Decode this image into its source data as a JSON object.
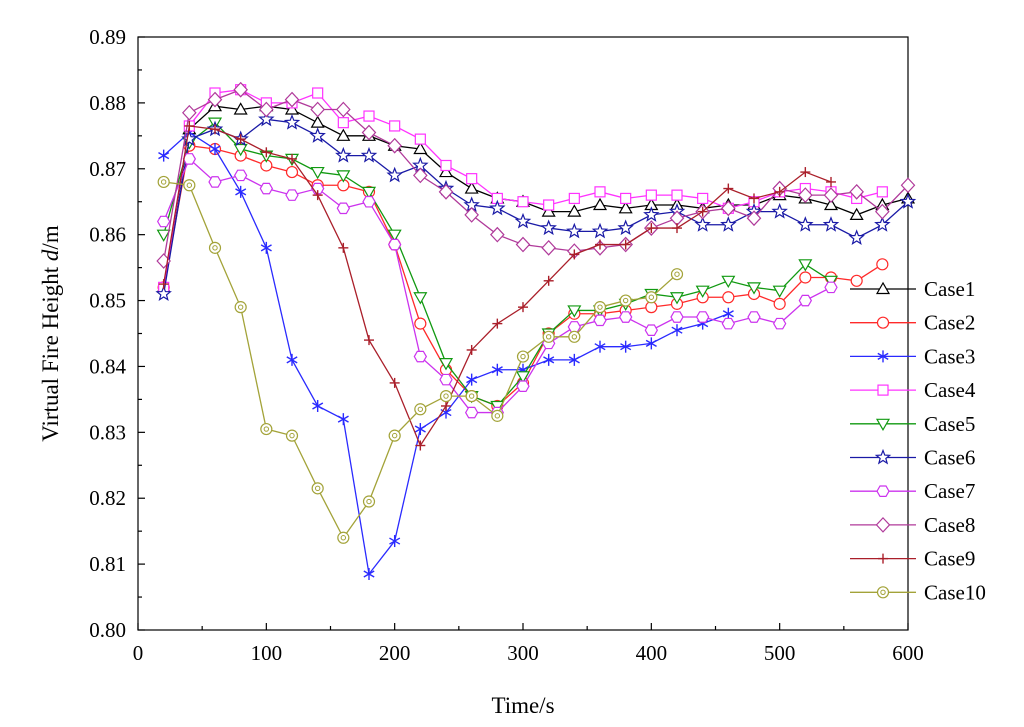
{
  "chart_data": {
    "type": "line",
    "title": "",
    "xlabel": "Time/s",
    "ylabel_prefix": "Virtual Fire Height ",
    "ylabel_var": "d",
    "ylabel_suffix": "/m",
    "xlim": [
      0,
      600
    ],
    "ylim": [
      0.8,
      0.89
    ],
    "xticks": [
      0,
      100,
      200,
      300,
      400,
      500,
      600
    ],
    "yticks": [
      0.8,
      0.81,
      0.82,
      0.83,
      0.84,
      0.85,
      0.86,
      0.87,
      0.88,
      0.89
    ],
    "xtick_labels": [
      "0",
      "100",
      "200",
      "300",
      "400",
      "500",
      "600"
    ],
    "ytick_labels": [
      "0.80",
      "0.81",
      "0.82",
      "0.83",
      "0.84",
      "0.85",
      "0.86",
      "0.87",
      "0.88",
      "0.89"
    ],
    "legend_position": "right",
    "grid": false,
    "series": [
      {
        "name": "Case1",
        "color": "#000000",
        "marker": "triangle-up",
        "x": [
          20,
          40,
          60,
          80,
          100,
          120,
          140,
          160,
          180,
          200,
          220,
          240,
          260,
          280,
          300,
          320,
          340,
          360,
          380,
          400,
          420,
          440,
          460,
          480,
          500,
          520,
          540,
          560,
          580,
          600
        ],
        "y": [
          0.852,
          0.876,
          0.8795,
          0.879,
          0.8795,
          0.879,
          0.877,
          0.875,
          0.875,
          0.8735,
          0.873,
          0.8695,
          0.867,
          0.8655,
          0.865,
          0.8635,
          0.8635,
          0.8645,
          0.864,
          0.8645,
          0.8645,
          0.864,
          0.8645,
          0.8645,
          0.866,
          0.8655,
          0.8645,
          0.863,
          0.8645,
          0.8655
        ]
      },
      {
        "name": "Case2",
        "color": "#ff2a2a",
        "marker": "circle",
        "x": [
          20,
          40,
          60,
          80,
          100,
          120,
          140,
          160,
          180,
          200,
          220,
          240,
          260,
          280,
          300,
          320,
          340,
          360,
          380,
          400,
          420,
          440,
          460,
          480,
          500,
          520,
          540,
          560,
          580
        ],
        "y": [
          0.852,
          0.8735,
          0.873,
          0.872,
          0.8705,
          0.8695,
          0.8675,
          0.8675,
          0.8665,
          0.8585,
          0.8465,
          0.8395,
          0.8355,
          0.834,
          0.8375,
          0.845,
          0.848,
          0.848,
          0.8485,
          0.849,
          0.8495,
          0.8505,
          0.8505,
          0.851,
          0.8495,
          0.8535,
          0.8535,
          0.853,
          0.8555
        ]
      },
      {
        "name": "Case3",
        "color": "#2a2aff",
        "marker": "asterisk",
        "x": [
          20,
          40,
          60,
          80,
          100,
          120,
          140,
          160,
          180,
          200,
          220,
          240,
          260,
          280,
          300,
          320,
          340,
          360,
          380,
          400,
          420,
          440,
          460
        ],
        "y": [
          0.872,
          0.8755,
          0.873,
          0.8665,
          0.858,
          0.841,
          0.834,
          0.832,
          0.8085,
          0.8135,
          0.8305,
          0.833,
          0.838,
          0.8395,
          0.8395,
          0.841,
          0.841,
          0.843,
          0.843,
          0.8435,
          0.8455,
          0.8465,
          0.848
        ]
      },
      {
        "name": "Case4",
        "color": "#ff33ff",
        "marker": "square",
        "x": [
          20,
          40,
          60,
          80,
          100,
          120,
          140,
          160,
          180,
          200,
          220,
          240,
          260,
          280,
          300,
          320,
          340,
          360,
          380,
          400,
          420,
          440,
          460,
          480,
          500,
          520,
          540,
          560,
          580
        ],
        "y": [
          0.852,
          0.8765,
          0.8815,
          0.882,
          0.88,
          0.88,
          0.8815,
          0.877,
          0.878,
          0.8765,
          0.8745,
          0.8705,
          0.8685,
          0.8655,
          0.865,
          0.8645,
          0.8655,
          0.8665,
          0.8655,
          0.866,
          0.866,
          0.8655,
          0.864,
          0.865,
          0.8665,
          0.867,
          0.8665,
          0.8655,
          0.8665
        ]
      },
      {
        "name": "Case5",
        "color": "#119911",
        "marker": "triangle-down",
        "x": [
          20,
          40,
          60,
          80,
          100,
          120,
          140,
          160,
          180,
          200,
          220,
          240,
          260,
          280,
          300,
          320,
          340,
          360,
          380,
          400,
          420,
          440,
          460,
          480,
          500,
          520,
          540
        ],
        "y": [
          0.86,
          0.874,
          0.877,
          0.873,
          0.872,
          0.8715,
          0.8695,
          0.869,
          0.8665,
          0.86,
          0.8505,
          0.8405,
          0.8355,
          0.834,
          0.8385,
          0.845,
          0.8485,
          0.8485,
          0.8495,
          0.851,
          0.8505,
          0.8515,
          0.853,
          0.852,
          0.8515,
          0.8555,
          0.853
        ]
      },
      {
        "name": "Case6",
        "color": "#1a1aa6",
        "marker": "star",
        "x": [
          20,
          40,
          60,
          80,
          100,
          120,
          140,
          160,
          180,
          200,
          220,
          240,
          260,
          280,
          300,
          320,
          340,
          360,
          380,
          400,
          420,
          440,
          460,
          480,
          500,
          520,
          540,
          560,
          580,
          600
        ],
        "y": [
          0.851,
          0.8745,
          0.876,
          0.8745,
          0.8775,
          0.877,
          0.875,
          0.872,
          0.872,
          0.869,
          0.8705,
          0.867,
          0.8645,
          0.864,
          0.862,
          0.861,
          0.8605,
          0.8605,
          0.861,
          0.863,
          0.8635,
          0.8615,
          0.8615,
          0.8635,
          0.8635,
          0.8615,
          0.8615,
          0.8595,
          0.8615,
          0.865
        ]
      },
      {
        "name": "Case7",
        "color": "#cc33ee",
        "marker": "hexagon",
        "x": [
          20,
          40,
          60,
          80,
          100,
          120,
          140,
          160,
          180,
          200,
          220,
          240,
          260,
          280,
          300,
          320,
          340,
          360,
          380,
          400,
          420,
          440,
          460,
          480,
          500,
          520,
          540
        ],
        "y": [
          0.862,
          0.8715,
          0.868,
          0.869,
          0.867,
          0.866,
          0.867,
          0.864,
          0.865,
          0.8585,
          0.8415,
          0.838,
          0.833,
          0.833,
          0.837,
          0.8435,
          0.846,
          0.847,
          0.8475,
          0.8455,
          0.8475,
          0.8475,
          0.8465,
          0.8475,
          0.8465,
          0.85,
          0.852
        ]
      },
      {
        "name": "Case8",
        "color": "#b03a9a",
        "marker": "diamond",
        "x": [
          20,
          40,
          60,
          80,
          100,
          120,
          140,
          160,
          180,
          200,
          220,
          240,
          260,
          280,
          300,
          320,
          340,
          360,
          380,
          400,
          420,
          440,
          460,
          480,
          500,
          520,
          540,
          560,
          580,
          600
        ],
        "y": [
          0.856,
          0.8785,
          0.8805,
          0.882,
          0.879,
          0.8805,
          0.879,
          0.879,
          0.8755,
          0.8735,
          0.869,
          0.8665,
          0.863,
          0.86,
          0.8585,
          0.858,
          0.8575,
          0.858,
          0.8585,
          0.861,
          0.8625,
          0.8635,
          0.864,
          0.8625,
          0.867,
          0.866,
          0.866,
          0.8665,
          0.8635,
          0.8675
        ]
      },
      {
        "name": "Case9",
        "color": "#aa1f2a",
        "marker": "plus",
        "x": [
          20,
          40,
          60,
          80,
          100,
          120,
          140,
          160,
          180,
          200,
          220,
          240,
          260,
          280,
          300,
          320,
          340,
          360,
          380,
          400,
          420,
          440,
          460,
          480,
          500,
          520,
          540
        ],
        "y": [
          0.8525,
          0.8765,
          0.876,
          0.8745,
          0.8725,
          0.8715,
          0.866,
          0.858,
          0.844,
          0.8375,
          0.828,
          0.834,
          0.8425,
          0.8465,
          0.849,
          0.853,
          0.857,
          0.8585,
          0.8585,
          0.861,
          0.861,
          0.8635,
          0.867,
          0.8655,
          0.8665,
          0.8695,
          0.868
        ]
      },
      {
        "name": "Case10",
        "color": "#a3a339",
        "marker": "circle-dot",
        "x": [
          20,
          40,
          60,
          80,
          100,
          120,
          140,
          160,
          180,
          200,
          220,
          240,
          260,
          280,
          300,
          320,
          340,
          360,
          380,
          400,
          420
        ],
        "y": [
          0.868,
          0.8675,
          0.858,
          0.849,
          0.8305,
          0.8295,
          0.8215,
          0.814,
          0.8195,
          0.8295,
          0.8335,
          0.8355,
          0.8355,
          0.8325,
          0.8415,
          0.8445,
          0.8445,
          0.849,
          0.85,
          0.8505,
          0.854
        ]
      }
    ]
  }
}
